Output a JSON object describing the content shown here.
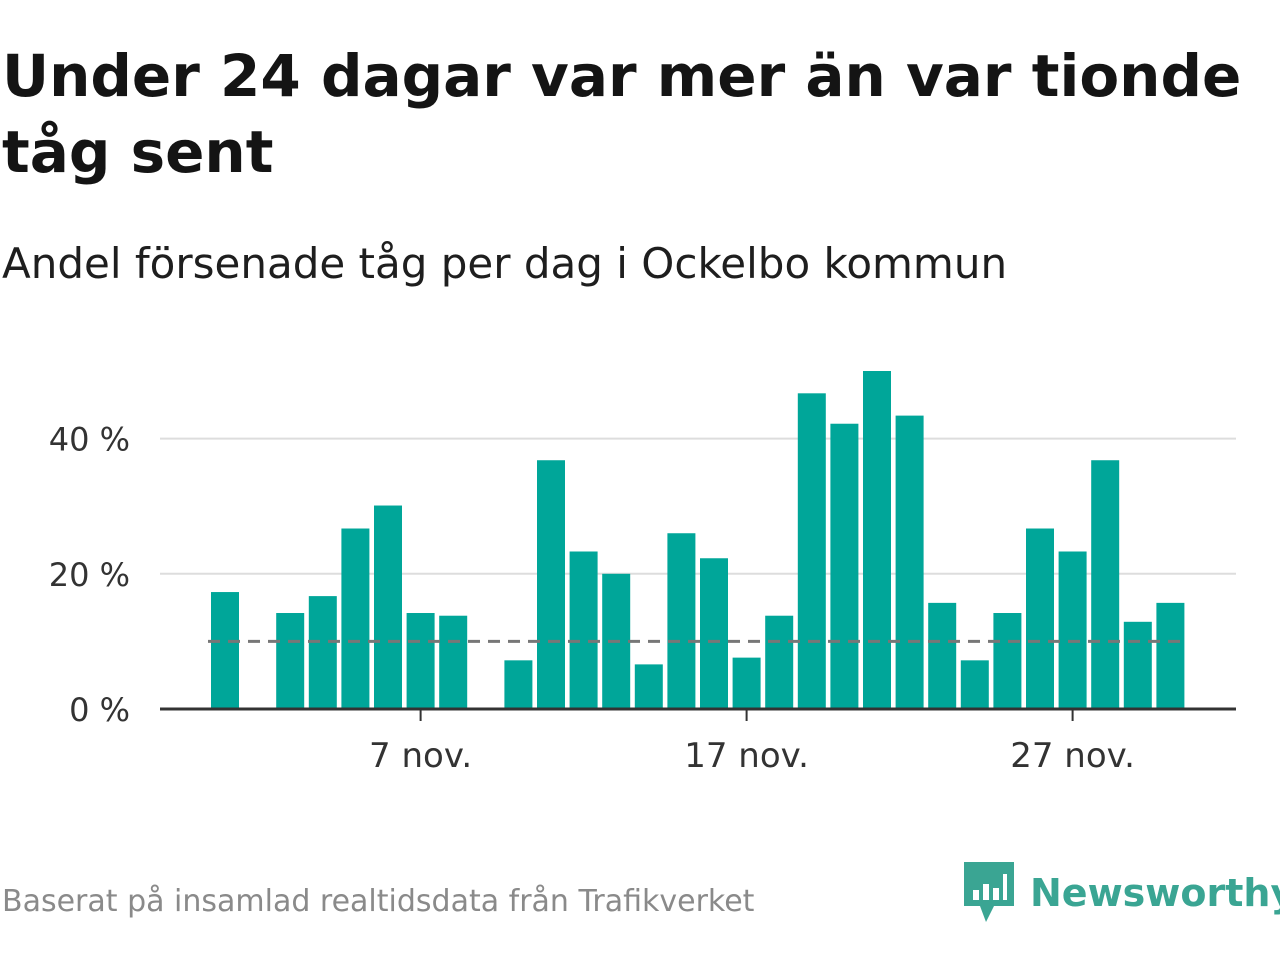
{
  "title": "Under 24 dagar var mer än var tionde tåg sent",
  "subtitle": "Andel försenade tåg per dag i Ockelbo kommun",
  "source": "Baserat på insamlad realtidsdata från Trafikverket",
  "brand": {
    "name": "Newsworthy",
    "color": "#3aa593"
  },
  "colors": {
    "bar": "#00a699",
    "reference": "#777777",
    "grid": "#dddddd",
    "axis": "#333333"
  },
  "chart_data": {
    "type": "bar",
    "title": "Under 24 dagar var mer än var tionde tåg sent",
    "subtitle": "Andel försenade tåg per dag i Ockelbo kommun",
    "x_start_day": 1,
    "x": [
      1,
      2,
      3,
      4,
      5,
      6,
      7,
      8,
      9,
      10,
      11,
      12,
      13,
      14,
      15,
      16,
      17,
      18,
      19,
      20,
      21,
      22,
      23,
      24,
      25,
      26,
      27,
      28,
      29,
      30
    ],
    "values": [
      17.3,
      null,
      14.2,
      16.7,
      26.7,
      30.1,
      14.2,
      13.8,
      null,
      7.2,
      36.8,
      23.3,
      20.0,
      6.6,
      26.0,
      22.3,
      7.6,
      13.8,
      46.7,
      42.2,
      50.0,
      43.4,
      15.7,
      7.2,
      14.2,
      26.7,
      23.3,
      36.8,
      12.9,
      15.7
    ],
    "reference_value": 10,
    "reference_style": "dashed",
    "ylim": [
      0,
      50
    ],
    "yticks": [
      0,
      20,
      40
    ],
    "ytick_labels": [
      "0 %",
      "20 %",
      "40 %"
    ],
    "xticks": [
      7,
      17,
      27
    ],
    "xtick_labels": [
      "7 nov.",
      "17 nov.",
      "27 nov."
    ],
    "grid": true
  }
}
